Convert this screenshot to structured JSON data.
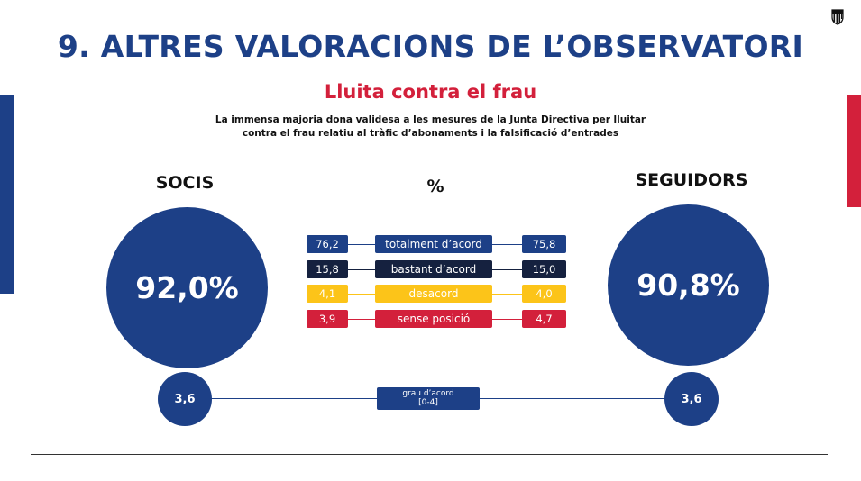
{
  "title": "9. ALTRES VALORACIONS DE L’OBSERVATORI",
  "subtitle": "Lluita contra el frau",
  "description_line1": "La immensa majoria dona validesa a les mesures de la Junta Directiva per lluitar",
  "description_line2": "contra el frau relatiu al tràfic d’abonaments i la falsificació d’entrades",
  "colors": {
    "blue": "#1d4087",
    "navy": "#15213f",
    "yellow": "#fcc419",
    "red": "#d3203b"
  },
  "chart_data": {
    "type": "table",
    "groups": [
      {
        "name": "SOCIS",
        "total": "92,0%",
        "grau": "3,6"
      },
      {
        "name": "SEGUIDORS",
        "total": "90,8%",
        "grau": "3,6"
      }
    ],
    "unit_header": "%",
    "rows": [
      {
        "label": "totalment d’acord",
        "socis": "76,2",
        "seguidors": "75,8",
        "color": "#1d4087"
      },
      {
        "label": "bastant d’acord",
        "socis": "15,8",
        "seguidors": "15,0",
        "color": "#15213f"
      },
      {
        "label": "desacord",
        "socis": "4,1",
        "seguidors": "4,0",
        "color": "#fcc419"
      },
      {
        "label": "sense posició",
        "socis": "3,9",
        "seguidors": "4,7",
        "color": "#d3203b"
      }
    ],
    "grau_label_line1": "grau d’acord",
    "grau_label_line2": "[0-4]"
  }
}
